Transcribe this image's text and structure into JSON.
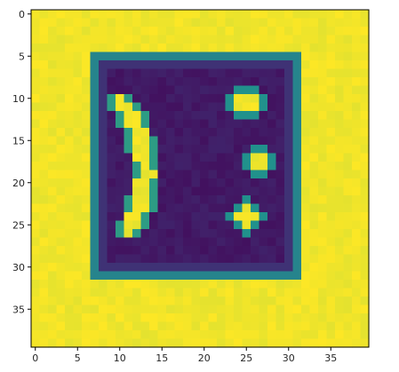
{
  "chart_data": {
    "type": "heatmap",
    "colormap": "viridis",
    "colors": {
      "low": "#440154",
      "mid_low": "#3b528b",
      "mid": "#21918c",
      "mid_high": "#5ec962",
      "high": "#fde725"
    },
    "grid": {
      "rows": 40,
      "cols": 40
    },
    "extent": {
      "x": [
        -0.5,
        39.5
      ],
      "y": [
        39.5,
        -0.5
      ]
    },
    "xticks": [
      0,
      5,
      10,
      15,
      20,
      25,
      30,
      35
    ],
    "yticks": [
      0,
      5,
      10,
      15,
      20,
      25,
      30,
      35
    ],
    "xtick_labels": [
      "0",
      "5",
      "10",
      "15",
      "20",
      "25",
      "30",
      "35"
    ],
    "ytick_labels": [
      "0",
      "5",
      "10",
      "15",
      "20",
      "25",
      "30",
      "35"
    ],
    "title": "",
    "xlabel": "",
    "ylabel": "",
    "background_value": 1.0,
    "regions": [
      {
        "shape": "rounded-rect",
        "name": "frame",
        "value": 0.0,
        "x0": 7,
        "x1": 31,
        "y0": 5,
        "y1": 31,
        "edge_gradient": true
      },
      {
        "shape": "arc",
        "name": "parenthesis",
        "value": 1.0,
        "x": [
          10,
          13,
          11
        ],
        "y": [
          10,
          18,
          26
        ]
      },
      {
        "shape": "dot",
        "name": "dot-top",
        "value": 1.0,
        "cx": 25,
        "cy": 10.5,
        "r": 1.3
      },
      {
        "shape": "dot",
        "name": "dot-middle",
        "value": 1.0,
        "cx": 26.5,
        "cy": 17.5,
        "r": 1.0
      },
      {
        "shape": "dot",
        "name": "dot-bottom",
        "value": 1.0,
        "cx": 25,
        "cy": 24,
        "r": 1.3
      }
    ]
  }
}
